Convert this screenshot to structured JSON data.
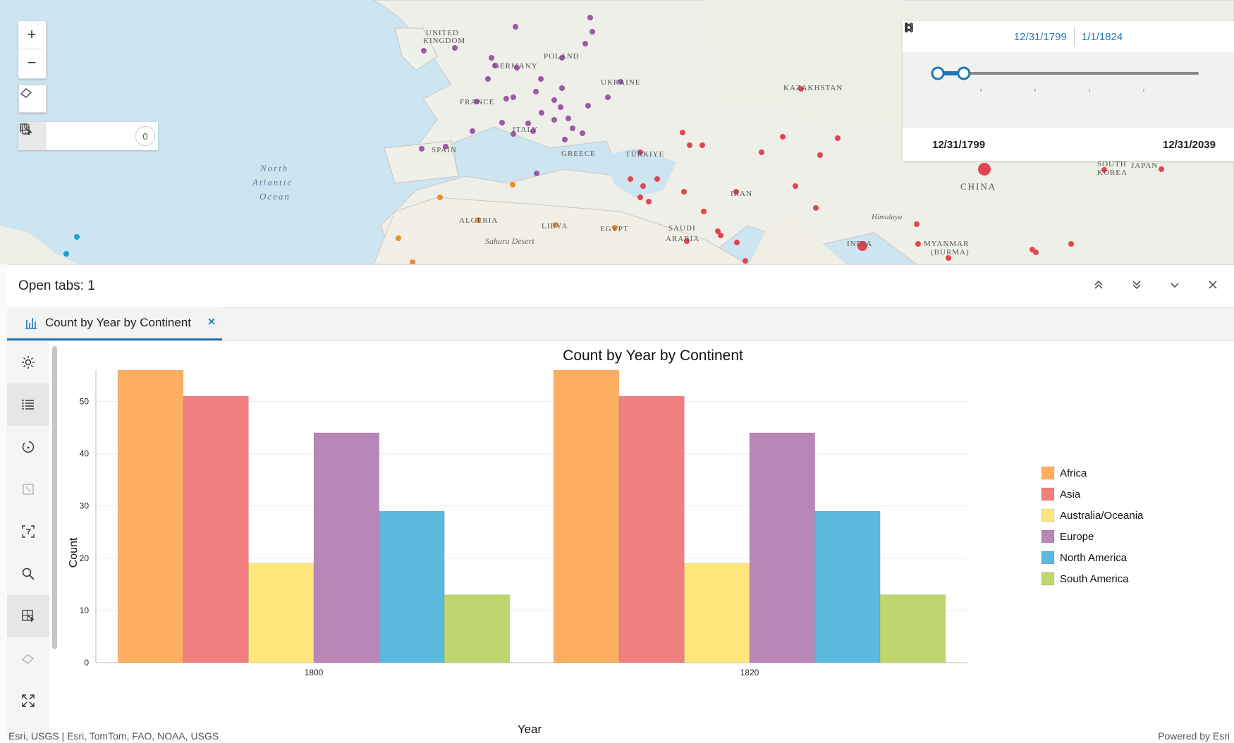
{
  "map": {
    "labels": [
      "UNITED KINGDOM",
      "GERMANY",
      "POLAND",
      "UKRAINE",
      "KAZAKHSTAN",
      "FRANCE",
      "ITALY",
      "SPAIN",
      "GREECE",
      "TÜRKIYE",
      "IRAN",
      "ALGERIA",
      "LIBYA",
      "EGYPT",
      "SAUDI ARABIA",
      "INDIA",
      "CHINA",
      "MYANMAR (BURMA)",
      "SOUTH KOREA",
      "JAPAN",
      "Himalaya",
      "Sahara Desert",
      "North Atlantic Ocean"
    ],
    "attribution_left": "Esri, USGS | Esri, TomTom, FAO, NOAA, USGS",
    "attribution_right": "Powered by Esri"
  },
  "map_tools": {
    "zoom_in": "+",
    "zoom_out": "−",
    "selection_count": "0"
  },
  "time_slider": {
    "range_start": "12/31/1799",
    "range_end": "1/1/1824",
    "full_start": "12/31/1799",
    "full_end": "12/31/2039",
    "handle_start_fraction": 0.0,
    "handle_end_fraction": 0.1
  },
  "panel": {
    "title": "Open tabs: 1",
    "tab_label": "Count by Year by Continent"
  },
  "colors": {
    "accent": "#1f77b4",
    "Africa": "#fdae61",
    "Asia": "#f08080",
    "Australia/Oceania": "#fde77c",
    "Europe": "#b986b8",
    "North America": "#5ab9de",
    "South America": "#bfd66e"
  },
  "chart_data": {
    "type": "bar",
    "title": "Count by Year by Continent",
    "xlabel": "Year",
    "ylabel": "Count",
    "categories": [
      "1800",
      "1820"
    ],
    "ylim": [
      0,
      56
    ],
    "yticks": [
      0,
      10,
      20,
      30,
      40,
      50
    ],
    "grid": true,
    "legend": "right",
    "series": [
      {
        "name": "Africa",
        "values": [
          56,
          56
        ]
      },
      {
        "name": "Asia",
        "values": [
          51,
          51
        ]
      },
      {
        "name": "Australia/Oceania",
        "values": [
          19,
          19
        ]
      },
      {
        "name": "Europe",
        "values": [
          44,
          44
        ]
      },
      {
        "name": "North America",
        "values": [
          29,
          29
        ]
      },
      {
        "name": "South America",
        "values": [
          13,
          13
        ]
      }
    ]
  }
}
